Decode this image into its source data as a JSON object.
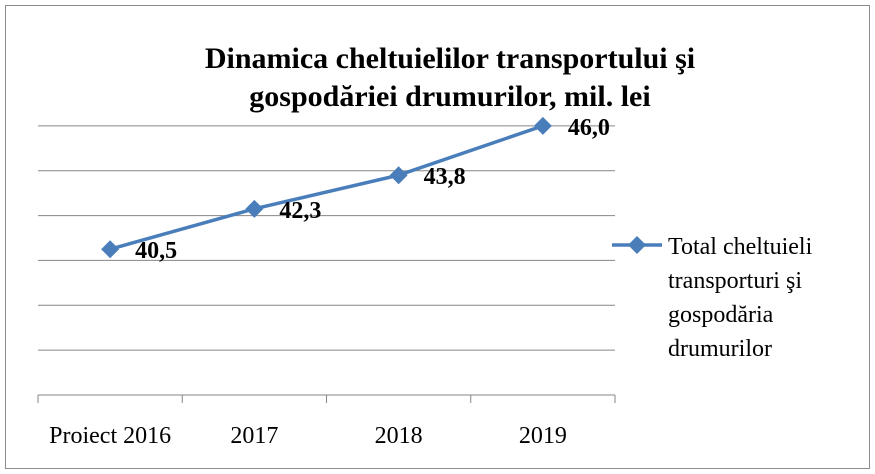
{
  "chart_data": {
    "type": "line",
    "title": "Dinamica cheltuielilor transportului şi gospodăriei drumurilor, mil. lei",
    "categories": [
      "Proiect 2016",
      "2017",
      "2018",
      "2019"
    ],
    "series": [
      {
        "name": "Total cheltuieli transporturi şi gospodăria drumurilor",
        "color": "#4a7ebb",
        "values": [
          40.5,
          42.3,
          43.8,
          46.0
        ],
        "value_labels": [
          "40,5",
          "42,3",
          "43,8",
          "46,0"
        ]
      }
    ],
    "ylim": [
      34,
      48
    ],
    "yticks": [
      34,
      36,
      38,
      40,
      42,
      44,
      46,
      48
    ],
    "grid": true,
    "legend": "right"
  }
}
